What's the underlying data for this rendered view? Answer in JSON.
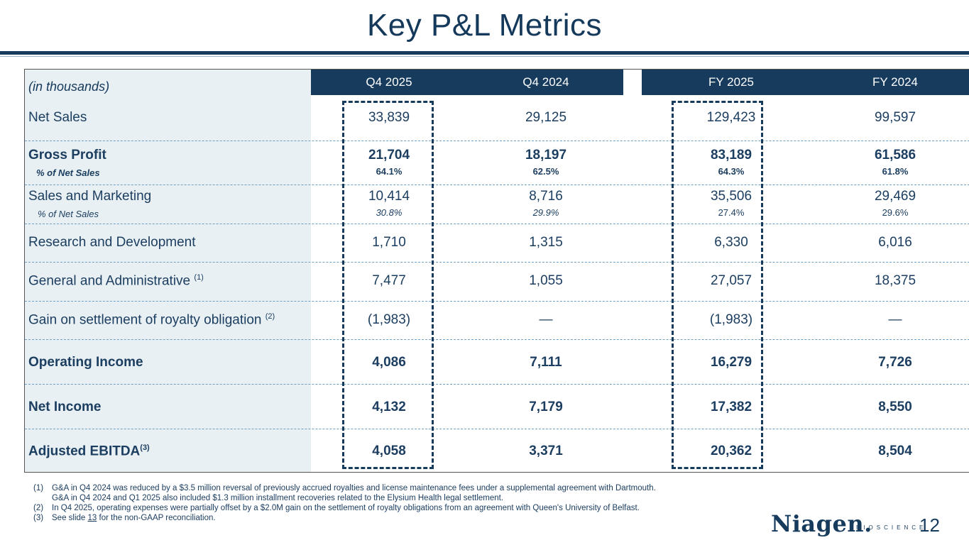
{
  "title": "Key P&L Metrics",
  "colors": {
    "navy": "#163b5d",
    "label_bg": "#e8f0f3",
    "separator": "#6fa0c4"
  },
  "table": {
    "units_label": "(in thousands)",
    "columns": [
      "Q4 2025",
      "Q4 2024",
      "FY 2025",
      "FY 2024"
    ],
    "rows": [
      {
        "label": "Net Sales",
        "values": [
          "33,839",
          "29,125",
          "129,423",
          "99,597"
        ]
      },
      {
        "label": "Gross Profit",
        "sub_label": "% of Net Sales",
        "values": [
          "21,704",
          "18,197",
          "83,189",
          "61,586"
        ],
        "pcts": [
          "64.1%",
          "62.5%",
          "64.3%",
          "61.8%"
        ]
      },
      {
        "label": "Sales and Marketing",
        "sub_label": "% of Net Sales",
        "values": [
          "10,414",
          "8,716",
          "35,506",
          "29,469"
        ],
        "pcts": [
          "30.8%",
          "29.9%",
          "27.4%",
          "29.6%"
        ]
      },
      {
        "label": "Research and Development",
        "values": [
          "1,710",
          "1,315",
          "6,330",
          "6,016"
        ]
      },
      {
        "label": "General and Administrative",
        "note": "(1)",
        "values": [
          "7,477",
          "1,055",
          "27,057",
          "18,375"
        ]
      },
      {
        "label": "Gain on settlement of royalty obligation",
        "note": "(2)",
        "values": [
          "(1,983)",
          "—",
          "(1,983)",
          "—"
        ]
      },
      {
        "label": "Operating Income",
        "values": [
          "4,086",
          "7,111",
          "16,279",
          "7,726"
        ]
      },
      {
        "label": "Net Income",
        "values": [
          "4,132",
          "7,179",
          "17,382",
          "8,550"
        ]
      },
      {
        "label": "Adjusted EBITDA",
        "note": "(3)",
        "values": [
          "4,058",
          "3,371",
          "20,362",
          "8,504"
        ]
      }
    ]
  },
  "footnotes": [
    {
      "num": "(1)",
      "text": "G&A in Q4 2024 was reduced by a $3.5 million reversal of previously accrued royalties and license maintenance fees under a supplemental agreement with Dartmouth."
    },
    {
      "num": "",
      "text": "G&A in Q4 2024 and Q1 2025 also included $1.3 million installment recoveries related to the Elysium Health legal settlement."
    },
    {
      "num": "(2)",
      "text": "In Q4 2025, operating expenses were partially offset by a $2.0M gain on the settlement of royalty obligations from an agreement with Queen's University of Belfast."
    },
    {
      "num": "(3)",
      "text_before": "See slide",
      "link": "13",
      "text_after": "for the non-GAAP reconciliation."
    }
  ],
  "logo": {
    "wordmark": "Niagen.",
    "tagline": "BIOSCIENCE"
  },
  "page_number": "12"
}
